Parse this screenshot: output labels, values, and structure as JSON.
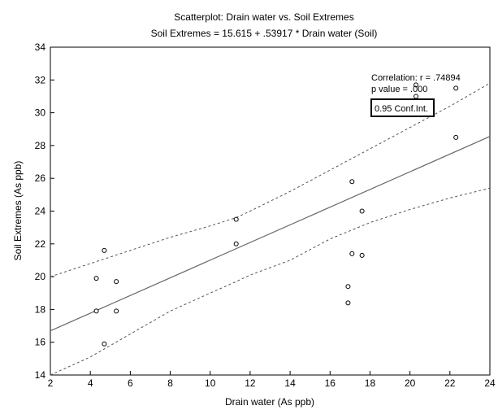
{
  "chart_data": {
    "type": "scatter",
    "title": "Scatterplot: Drain water vs. Soil Extremes",
    "subtitle": "Soil Extremes = 15.615 + .53917 * Drain water (Soil)",
    "xlabel": "Drain water (As ppb)",
    "ylabel": "Soil Extremes (As ppb)",
    "xlim": [
      2,
      24
    ],
    "ylim": [
      14,
      34
    ],
    "xticks": [
      2,
      4,
      6,
      8,
      10,
      12,
      14,
      16,
      18,
      20,
      22,
      24
    ],
    "yticks": [
      14,
      16,
      18,
      20,
      22,
      24,
      26,
      28,
      30,
      32,
      34
    ],
    "grid": false,
    "points": [
      {
        "x": 4.3,
        "y": 19.9
      },
      {
        "x": 4.3,
        "y": 17.9
      },
      {
        "x": 4.7,
        "y": 21.6
      },
      {
        "x": 4.7,
        "y": 15.9
      },
      {
        "x": 5.3,
        "y": 19.7
      },
      {
        "x": 5.3,
        "y": 17.9
      },
      {
        "x": 11.3,
        "y": 23.5
      },
      {
        "x": 11.3,
        "y": 22.0
      },
      {
        "x": 16.9,
        "y": 19.4
      },
      {
        "x": 16.9,
        "y": 18.4
      },
      {
        "x": 17.1,
        "y": 25.8
      },
      {
        "x": 17.1,
        "y": 21.4
      },
      {
        "x": 17.6,
        "y": 24.0
      },
      {
        "x": 17.6,
        "y": 21.3
      },
      {
        "x": 20.3,
        "y": 31.7
      },
      {
        "x": 20.3,
        "y": 31.0
      },
      {
        "x": 22.3,
        "y": 31.5
      },
      {
        "x": 22.3,
        "y": 28.5
      }
    ],
    "regression": {
      "intercept": 15.615,
      "slope": 0.53917
    },
    "confidence_band": {
      "x": [
        2,
        4,
        6,
        8,
        10,
        11.3,
        12,
        14,
        16,
        18,
        20,
        22,
        24
      ],
      "upper": [
        20.0,
        20.8,
        21.6,
        22.4,
        23.1,
        23.6,
        24.0,
        25.2,
        26.5,
        27.8,
        29.1,
        30.4,
        31.8
      ],
      "lower": [
        13.3,
        15.1,
        16.5,
        17.9,
        19.0,
        19.7,
        20.1,
        21.0,
        22.3,
        23.3,
        24.1,
        24.8,
        25.4
      ]
    },
    "annotations": {
      "correlation": "Correlation: r = .74894",
      "p_value": "p value = .000",
      "conf_label": "0.95 Conf.Int."
    }
  }
}
